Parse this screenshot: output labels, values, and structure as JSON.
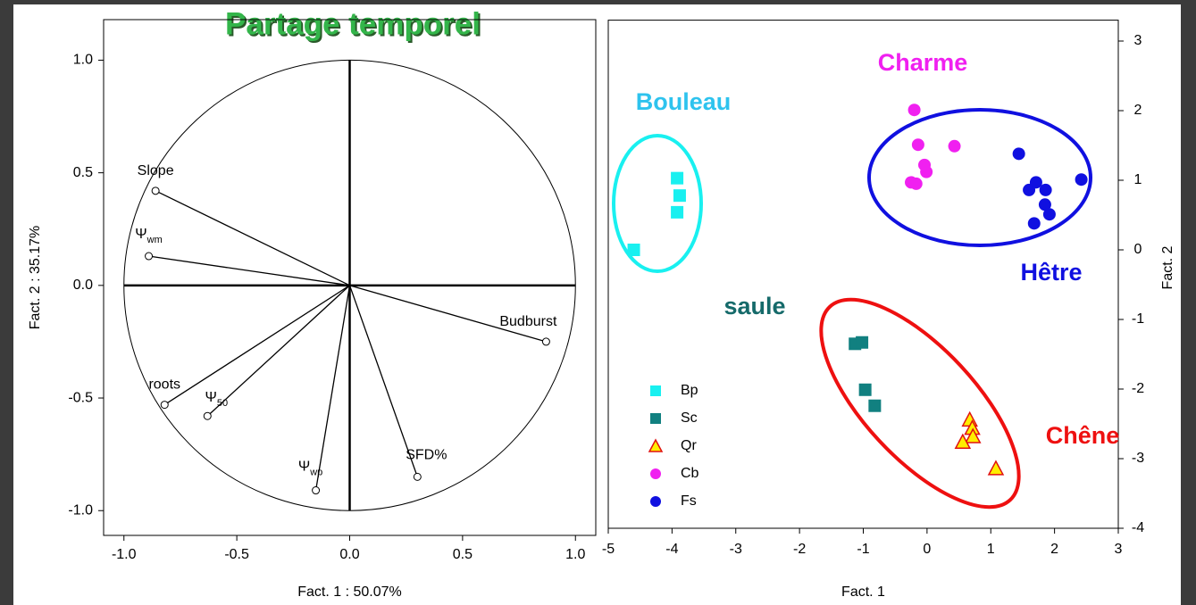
{
  "title": "Partage temporel",
  "chart_data": [
    {
      "type": "vectors",
      "xlabel": "Fact. 1  : 50.07%",
      "ylabel": "Fact. 2  : 35.17%",
      "xlim": [
        -1.09,
        1.09
      ],
      "ylim": [
        -1.11,
        1.18
      ],
      "xticks": [
        {
          "value": -1,
          "label": "-1.0"
        },
        -0.5,
        {
          "value": 0,
          "label": "0.0"
        },
        0.5,
        {
          "value": 1,
          "label": "1.0"
        }
      ],
      "yticks": [
        {
          "value": -1,
          "label": "-1.0"
        },
        -0.5,
        {
          "value": 0,
          "label": "0.0"
        },
        0.5,
        {
          "value": 1,
          "label": "1.0"
        }
      ],
      "labels": [
        "Slope",
        "Ψ",
        "Budburst",
        "roots",
        "Ψ",
        "Ψ",
        "SFD%"
      ],
      "label_subscripts": [
        null,
        "wm",
        null,
        null,
        "50",
        "wp",
        null
      ],
      "x": [
        -0.86,
        -0.89,
        0.87,
        -0.82,
        -0.63,
        -0.15,
        0.3
      ],
      "y": [
        0.42,
        0.13,
        -0.25,
        -0.53,
        -0.58,
        -0.91,
        -0.85
      ]
    },
    {
      "type": "scatter",
      "xlabel": "Fact. 1",
      "ylabel": "Fact. 2",
      "xlim": [
        -5,
        3
      ],
      "ylim": [
        -4,
        3.3
      ],
      "xticks": [
        -5,
        -4,
        -3,
        -2,
        -1,
        0,
        1,
        2,
        3
      ],
      "yticks": [
        -4,
        -3,
        -2,
        -1,
        0,
        1,
        2,
        3
      ],
      "series": [
        {
          "name": "Bp",
          "color": "#19f0f0",
          "marker": "square",
          "x": [
            -4.6,
            -3.92,
            -3.88,
            -3.92
          ],
          "y": [
            0.0,
            1.03,
            0.78,
            0.54
          ]
        },
        {
          "name": "Sc",
          "color": "#118080",
          "marker": "square",
          "x": [
            -1.13,
            -1.02,
            -0.97,
            -0.82
          ],
          "y": [
            -1.35,
            -1.33,
            -2.01,
            -2.24
          ]
        },
        {
          "name": "Qr",
          "color": "#ffee00",
          "edge_color": "#e01010",
          "marker": "triangle",
          "x": [
            0.67,
            0.71,
            0.72,
            0.56,
            1.08
          ],
          "y": [
            -2.44,
            -2.56,
            -2.68,
            -2.76,
            -3.14
          ]
        },
        {
          "name": "Cb",
          "color": "#f020f0",
          "marker": "circle",
          "x": [
            -0.2,
            -0.14,
            -0.04,
            -0.01,
            -0.25,
            -0.17,
            0.43
          ],
          "y": [
            2.01,
            1.51,
            1.22,
            1.12,
            0.97,
            0.95,
            1.49
          ]
        },
        {
          "name": "Fs",
          "color": "#1010e0",
          "marker": "circle",
          "x": [
            1.44,
            1.6,
            1.71,
            1.86,
            1.85,
            1.92,
            1.68,
            2.42
          ],
          "y": [
            1.38,
            0.86,
            0.97,
            0.86,
            0.65,
            0.51,
            0.38,
            1.01
          ]
        }
      ],
      "annotations": [
        {
          "text": "Bouleau",
          "color": "#2ec3ee"
        },
        {
          "text": "Charme",
          "color": "#f020f0"
        },
        {
          "text": "Hêtre",
          "color": "#1010e0"
        },
        {
          "text": "saule",
          "color": "#156a6a"
        },
        {
          "text": "Chêne",
          "color": "#ee1010"
        }
      ]
    }
  ]
}
